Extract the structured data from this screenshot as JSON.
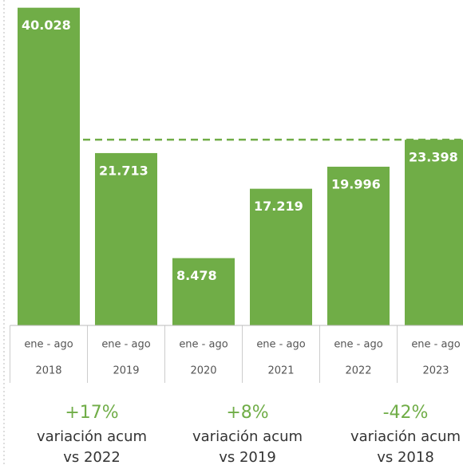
{
  "chart_data": {
    "type": "bar",
    "categories": [
      "2018",
      "2019",
      "2020",
      "2021",
      "2022",
      "2023"
    ],
    "period_labels": [
      "ene - ago",
      "ene - ago",
      "ene - ago",
      "ene - ago",
      "ene - ago",
      "ene - ago"
    ],
    "values": [
      40028,
      21713,
      8478,
      17219,
      19996,
      23398
    ],
    "value_labels": [
      "40.028",
      "21.713",
      "8.478",
      "17.219",
      "19.996",
      "23.398"
    ],
    "color": "#70ad47",
    "ylim": [
      0,
      41000
    ],
    "reference_line": 23398,
    "annotations": [
      {
        "value": "+17%",
        "text": "variación acum",
        "compare": "vs 2022"
      },
      {
        "value": "+8%",
        "text": "variación acum",
        "compare": "vs 2019"
      },
      {
        "value": "-42%",
        "text": "variación acum",
        "compare": "vs 2018"
      }
    ]
  }
}
